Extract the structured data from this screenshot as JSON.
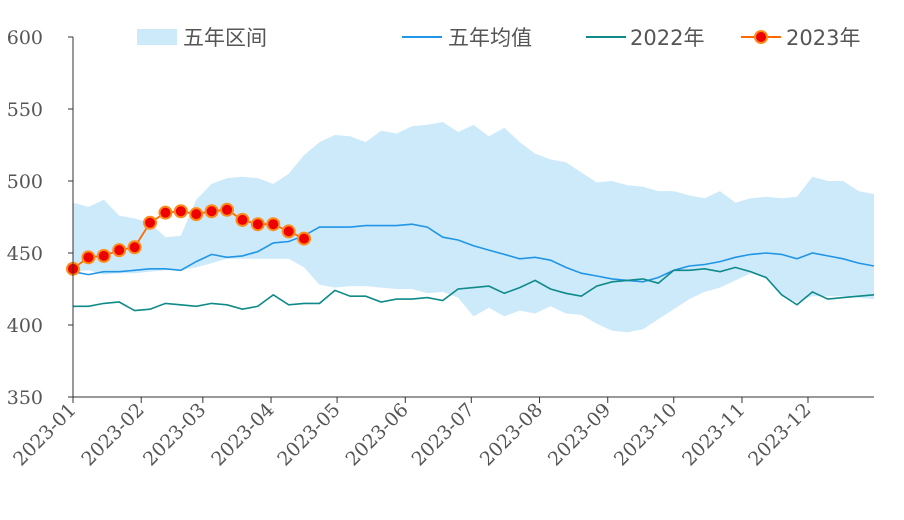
{
  "chart_data": {
    "type": "line",
    "x_axis": {
      "type": "date",
      "start": "2023-01-01",
      "end": "2023-12-31",
      "tick_labels": [
        "2023-01",
        "2023-02",
        "2023-03",
        "2023-04",
        "2023-05",
        "2023-06",
        "2023-07",
        "2023-08",
        "2023-09",
        "2023-10",
        "2023-11",
        "2023-12"
      ],
      "tick_dates": [
        "2023-01-01",
        "2023-02-01",
        "2023-03-01",
        "2023-04-01",
        "2023-05-01",
        "2023-06-01",
        "2023-07-01",
        "2023-08-01",
        "2023-09-01",
        "2023-10-01",
        "2023-11-01",
        "2023-12-01"
      ]
    },
    "y_axis": {
      "min": 350,
      "max": 600,
      "ticks": [
        350,
        400,
        450,
        500,
        550,
        600
      ]
    },
    "grid": false,
    "legend_position": "top",
    "band": {
      "name": "五年区间",
      "color": "#cdeafb",
      "x": [
        "2023-01-01",
        "2023-01-08",
        "2023-01-15",
        "2023-01-22",
        "2023-01-29",
        "2023-02-05",
        "2023-02-12",
        "2023-02-19",
        "2023-02-26",
        "2023-03-05",
        "2023-03-12",
        "2023-03-19",
        "2023-03-26",
        "2023-04-02",
        "2023-04-09",
        "2023-04-16",
        "2023-04-23",
        "2023-04-30",
        "2023-05-07",
        "2023-05-14",
        "2023-05-21",
        "2023-05-28",
        "2023-06-04",
        "2023-06-11",
        "2023-06-18",
        "2023-06-25",
        "2023-07-02",
        "2023-07-09",
        "2023-07-16",
        "2023-07-23",
        "2023-07-30",
        "2023-08-06",
        "2023-08-13",
        "2023-08-20",
        "2023-08-27",
        "2023-09-03",
        "2023-09-10",
        "2023-09-17",
        "2023-09-24",
        "2023-10-01",
        "2023-10-08",
        "2023-10-15",
        "2023-10-22",
        "2023-10-29",
        "2023-11-05",
        "2023-11-12",
        "2023-11-19",
        "2023-11-26",
        "2023-12-03",
        "2023-12-10",
        "2023-12-17",
        "2023-12-24",
        "2023-12-31"
      ],
      "upper": [
        485,
        482,
        487,
        476,
        474,
        471,
        461,
        462,
        487,
        498,
        502,
        503,
        502,
        498,
        505,
        518,
        527,
        532,
        531,
        527,
        535,
        533,
        538,
        539,
        541,
        534,
        539,
        531,
        537,
        527,
        519,
        515,
        513,
        506,
        499,
        500,
        497,
        496,
        493,
        493,
        490,
        488,
        493,
        485,
        488,
        489,
        488,
        489,
        503,
        500,
        500,
        493,
        491
      ],
      "lower": [
        437,
        438,
        435,
        436,
        436,
        437,
        438,
        438,
        440,
        443,
        446,
        446,
        446,
        446,
        446,
        440,
        428,
        426,
        427,
        427,
        426,
        425,
        425,
        422,
        423,
        419,
        406,
        412,
        406,
        410,
        408,
        413,
        408,
        407,
        401,
        396,
        395,
        397,
        404,
        411,
        418,
        423,
        426,
        431,
        436,
        432,
        420,
        416,
        420,
        420,
        420,
        419,
        418
      ]
    },
    "series": [
      {
        "name": "五年均值",
        "color": "#2196e6",
        "x": [
          "2023-01-01",
          "2023-01-08",
          "2023-01-15",
          "2023-01-22",
          "2023-01-29",
          "2023-02-05",
          "2023-02-12",
          "2023-02-19",
          "2023-02-26",
          "2023-03-05",
          "2023-03-12",
          "2023-03-19",
          "2023-03-26",
          "2023-04-02",
          "2023-04-09",
          "2023-04-16",
          "2023-04-23",
          "2023-04-30",
          "2023-05-07",
          "2023-05-14",
          "2023-05-21",
          "2023-05-28",
          "2023-06-04",
          "2023-06-11",
          "2023-06-18",
          "2023-06-25",
          "2023-07-02",
          "2023-07-09",
          "2023-07-16",
          "2023-07-23",
          "2023-07-30",
          "2023-08-06",
          "2023-08-13",
          "2023-08-20",
          "2023-08-27",
          "2023-09-03",
          "2023-09-10",
          "2023-09-17",
          "2023-09-24",
          "2023-10-01",
          "2023-10-08",
          "2023-10-15",
          "2023-10-22",
          "2023-10-29",
          "2023-11-05",
          "2023-11-12",
          "2023-11-19",
          "2023-11-26",
          "2023-12-03",
          "2023-12-10",
          "2023-12-17",
          "2023-12-24",
          "2023-12-31"
        ],
        "values": [
          437,
          435,
          437,
          437,
          438,
          439,
          439,
          438,
          444,
          449,
          447,
          448,
          451,
          457,
          458,
          462,
          468,
          468,
          468,
          469,
          469,
          469,
          470,
          468,
          461,
          459,
          455,
          452,
          449,
          446,
          447,
          445,
          440,
          436,
          434,
          432,
          431,
          430,
          433,
          438,
          441,
          442,
          444,
          447,
          449,
          450,
          449,
          446,
          450,
          448,
          446,
          443,
          441
        ]
      },
      {
        "name": "2022年",
        "color": "#0e8a88",
        "x": [
          "2023-01-01",
          "2023-01-08",
          "2023-01-15",
          "2023-01-22",
          "2023-01-29",
          "2023-02-05",
          "2023-02-12",
          "2023-02-19",
          "2023-02-26",
          "2023-03-05",
          "2023-03-12",
          "2023-03-19",
          "2023-03-26",
          "2023-04-02",
          "2023-04-09",
          "2023-04-16",
          "2023-04-23",
          "2023-04-30",
          "2023-05-07",
          "2023-05-14",
          "2023-05-21",
          "2023-05-28",
          "2023-06-04",
          "2023-06-11",
          "2023-06-18",
          "2023-06-25",
          "2023-07-02",
          "2023-07-09",
          "2023-07-16",
          "2023-07-23",
          "2023-07-30",
          "2023-08-06",
          "2023-08-13",
          "2023-08-20",
          "2023-08-27",
          "2023-09-03",
          "2023-09-10",
          "2023-09-17",
          "2023-09-24",
          "2023-10-01",
          "2023-10-08",
          "2023-10-15",
          "2023-10-22",
          "2023-10-29",
          "2023-11-05",
          "2023-11-12",
          "2023-11-19",
          "2023-11-26",
          "2023-12-03",
          "2023-12-10",
          "2023-12-17",
          "2023-12-24",
          "2023-12-31"
        ],
        "values": [
          413,
          413,
          415,
          416,
          410,
          411,
          415,
          414,
          413,
          415,
          414,
          411,
          413,
          421,
          414,
          415,
          415,
          424,
          420,
          420,
          416,
          418,
          418,
          419,
          417,
          425,
          426,
          427,
          422,
          426,
          431,
          425,
          422,
          420,
          427,
          430,
          431,
          432,
          429,
          438,
          438,
          439,
          437,
          440,
          437,
          433,
          421,
          414,
          423,
          418,
          419,
          420,
          421
        ]
      },
      {
        "name": "2023年",
        "color": "#ff6a00",
        "marker_fill": "#ee0000",
        "marker_stroke": "#ff8c1a",
        "x": [
          "2023-01-01",
          "2023-01-08",
          "2023-01-15",
          "2023-01-22",
          "2023-01-29",
          "2023-02-05",
          "2023-02-12",
          "2023-02-19",
          "2023-02-26",
          "2023-03-05",
          "2023-03-12",
          "2023-03-19",
          "2023-03-26",
          "2023-04-02",
          "2023-04-09",
          "2023-04-16"
        ],
        "values": [
          439,
          447,
          448,
          452,
          454,
          471,
          478,
          479,
          477,
          479,
          480,
          473,
          470,
          470,
          465,
          460
        ]
      }
    ]
  }
}
